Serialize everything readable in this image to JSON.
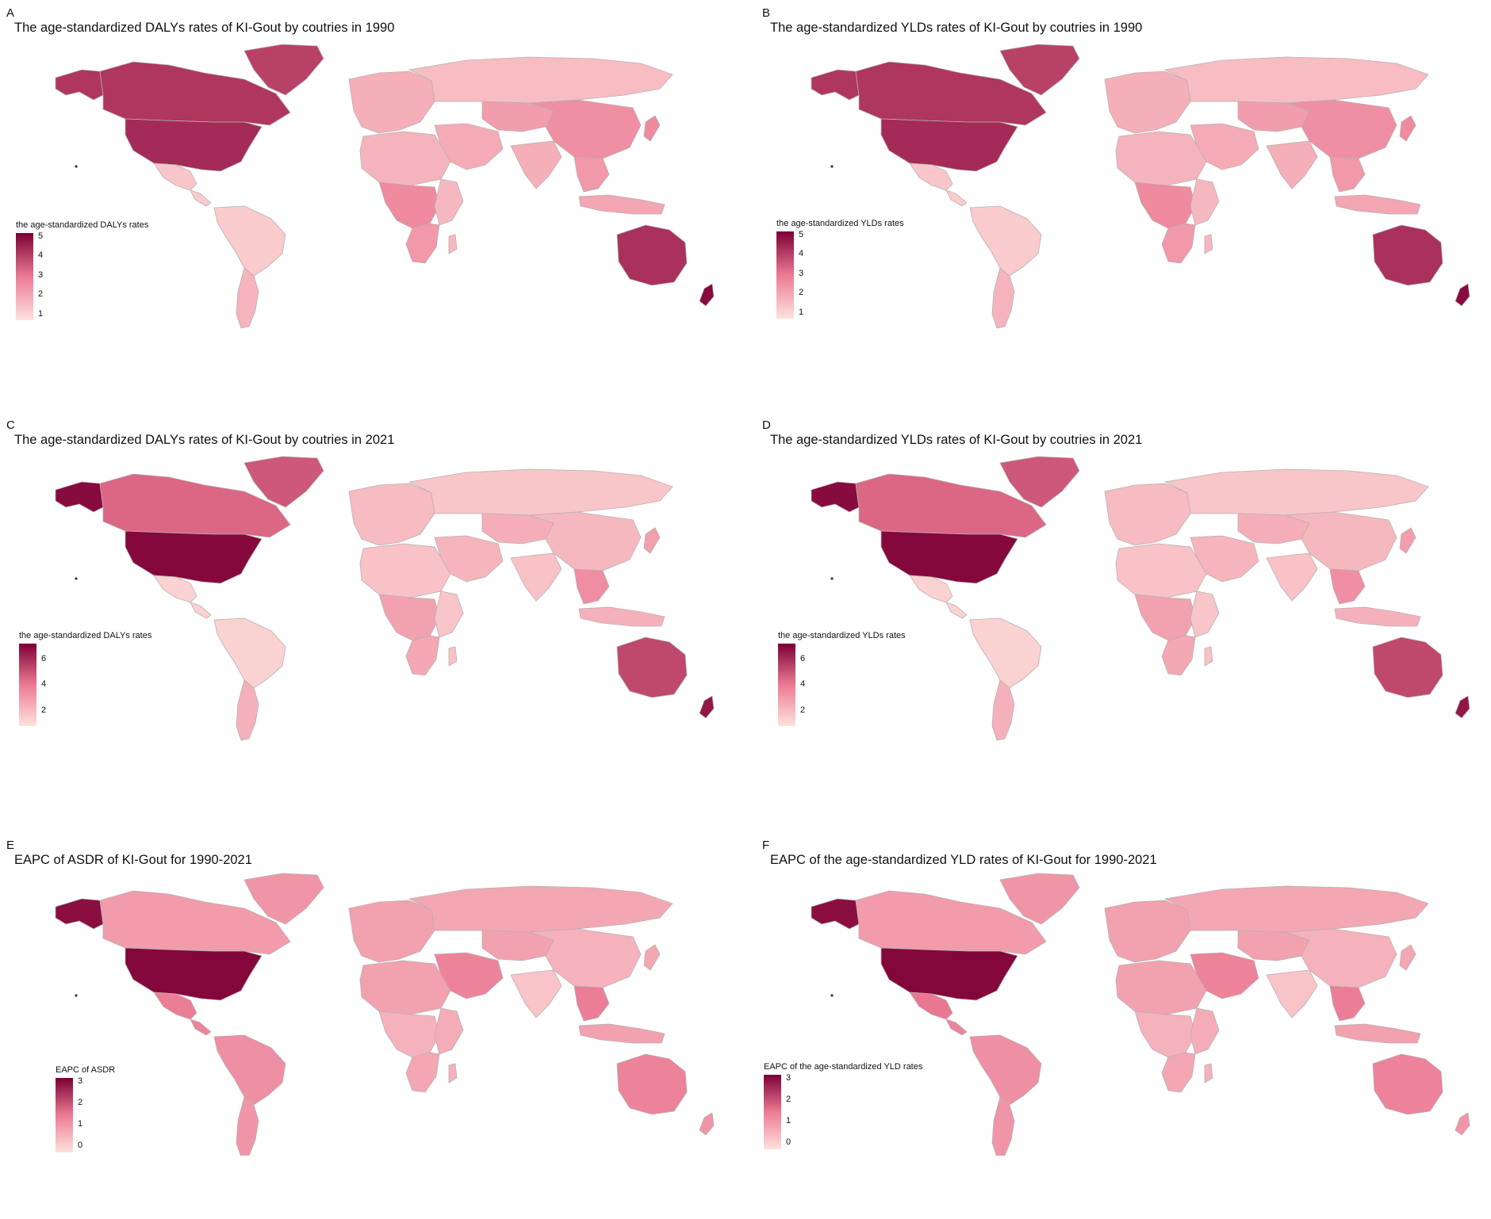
{
  "colors": {
    "low": "#fde2dd",
    "mid": "#ec7a94",
    "high": "#7d0035",
    "border": "#b9b0b2",
    "no_data": "#b5b0b3"
  },
  "panels": [
    {
      "letter": "A",
      "title": "The age-standardized DALYs rates of KI-Gout by coutries in 1990",
      "legend_title": "the age-standardized DALYs rates",
      "legend_ticks": [
        "5",
        "4",
        "3",
        "2",
        "1"
      ],
      "scale": [
        0.7,
        5.2
      ],
      "levels": {
        "alaska": 4.2,
        "canada": 4.2,
        "greenland": 4.0,
        "usa": 4.4,
        "mexico": 1.3,
        "central_america": 1.2,
        "south_america": 1.2,
        "argentina": 1.7,
        "europe": 1.8,
        "russia": 1.5,
        "middle_east": 1.9,
        "north_africa": 1.7,
        "central_africa": 2.6,
        "southern_africa": 2.3,
        "east_africa": 1.6,
        "central_asia": 2.2,
        "china": 2.5,
        "india": 1.8,
        "southeast_asia": 2.3,
        "japan": 2.6,
        "indonesia": 2.0,
        "madagascar": 1.6,
        "australia": 4.3,
        "new_zealand": 5.0
      }
    },
    {
      "letter": "B",
      "title": "The age-standardized YLDs rates of KI-Gout by coutries in 1990",
      "legend_title": "the age-standardized YLDs rates",
      "legend_ticks": [
        "5",
        "4",
        "3",
        "2",
        "1"
      ],
      "scale": [
        0.7,
        5.2
      ],
      "levels": {
        "alaska": 4.2,
        "canada": 4.2,
        "greenland": 4.0,
        "usa": 4.4,
        "mexico": 1.3,
        "central_america": 1.2,
        "south_america": 1.2,
        "argentina": 1.7,
        "europe": 1.8,
        "russia": 1.5,
        "middle_east": 1.9,
        "north_africa": 1.7,
        "central_africa": 2.6,
        "southern_africa": 2.3,
        "east_africa": 1.6,
        "central_asia": 2.2,
        "china": 2.5,
        "india": 1.8,
        "southeast_asia": 2.3,
        "japan": 2.6,
        "indonesia": 2.0,
        "madagascar": 1.6,
        "australia": 4.3,
        "new_zealand": 5.0
      }
    },
    {
      "letter": "C",
      "title": "The age-standardized DALYs rates of KI-Gout by coutries in 2021",
      "legend_title": "the age-standardized DALYs rates",
      "legend_ticks": [
        "6",
        "4",
        "2"
      ],
      "scale": [
        0.8,
        7.2
      ],
      "levels": {
        "alaska": 6.9,
        "canada": 4.5,
        "greenland": 4.9,
        "usa": 7.0,
        "mexico": 1.3,
        "central_america": 1.3,
        "south_america": 1.3,
        "argentina": 2.3,
        "europe": 2.0,
        "russia": 1.7,
        "middle_east": 2.2,
        "north_africa": 1.8,
        "central_africa": 2.8,
        "southern_africa": 2.6,
        "east_africa": 1.7,
        "central_asia": 2.4,
        "china": 2.1,
        "india": 1.8,
        "southeast_asia": 3.4,
        "japan": 2.9,
        "indonesia": 2.3,
        "madagascar": 1.8,
        "australia": 5.3,
        "new_zealand": 6.6
      }
    },
    {
      "letter": "D",
      "title": "The age-standardized YLDs rates of KI-Gout by coutries in 2021",
      "legend_title": "the age-standardized YLDs rates",
      "legend_ticks": [
        "6",
        "4",
        "2"
      ],
      "scale": [
        0.8,
        7.2
      ],
      "levels": {
        "alaska": 6.9,
        "canada": 4.5,
        "greenland": 4.9,
        "usa": 7.0,
        "mexico": 1.3,
        "central_america": 1.3,
        "south_america": 1.3,
        "argentina": 2.3,
        "europe": 2.0,
        "russia": 1.7,
        "middle_east": 2.2,
        "north_africa": 1.8,
        "central_africa": 2.8,
        "southern_africa": 2.6,
        "east_africa": 1.7,
        "central_asia": 2.4,
        "china": 2.1,
        "india": 1.8,
        "southeast_asia": 3.4,
        "japan": 2.9,
        "indonesia": 2.3,
        "madagascar": 1.8,
        "australia": 5.3,
        "new_zealand": 6.6
      }
    },
    {
      "letter": "E",
      "title": "EAPC of ASDR of KI-Gout for 1990-2021",
      "legend_title": "EAPC of ASDR",
      "legend_ticks": [
        "3",
        "2",
        "1",
        "0"
      ],
      "scale": [
        -0.3,
        3.2
      ],
      "levels": {
        "alaska": 3.0,
        "canada": 0.9,
        "greenland": 1.0,
        "usa": 3.1,
        "mexico": 1.4,
        "central_america": 1.3,
        "south_america": 1.1,
        "argentina": 1.0,
        "europe": 0.8,
        "russia": 0.7,
        "middle_east": 1.3,
        "north_africa": 0.8,
        "central_africa": 0.5,
        "southern_africa": 0.7,
        "east_africa": 0.6,
        "central_asia": 0.8,
        "china": 0.5,
        "india": 0.2,
        "southeast_asia": 1.4,
        "japan": 0.7,
        "indonesia": 0.8,
        "madagascar": 0.5,
        "australia": 1.3,
        "new_zealand": 1.0
      }
    },
    {
      "letter": "F",
      "title": "EAPC of the age-standardized YLD rates of KI-Gout for 1990-2021",
      "legend_title": "EAPC of the age-standardized YLD rates",
      "legend_ticks": [
        "3",
        "2",
        "1",
        "0"
      ],
      "scale": [
        -0.3,
        3.2
      ],
      "levels": {
        "alaska": 3.0,
        "canada": 0.9,
        "greenland": 1.0,
        "usa": 3.1,
        "mexico": 1.5,
        "central_america": 1.3,
        "south_america": 1.1,
        "argentina": 1.0,
        "europe": 0.8,
        "russia": 0.7,
        "middle_east": 1.3,
        "north_africa": 0.8,
        "central_africa": 0.5,
        "southern_africa": 0.7,
        "east_africa": 0.6,
        "central_asia": 0.8,
        "china": 0.5,
        "india": 0.2,
        "southeast_asia": 1.4,
        "japan": 0.7,
        "indonesia": 0.8,
        "madagascar": 0.5,
        "australia": 1.3,
        "new_zealand": 1.0
      }
    }
  ]
}
